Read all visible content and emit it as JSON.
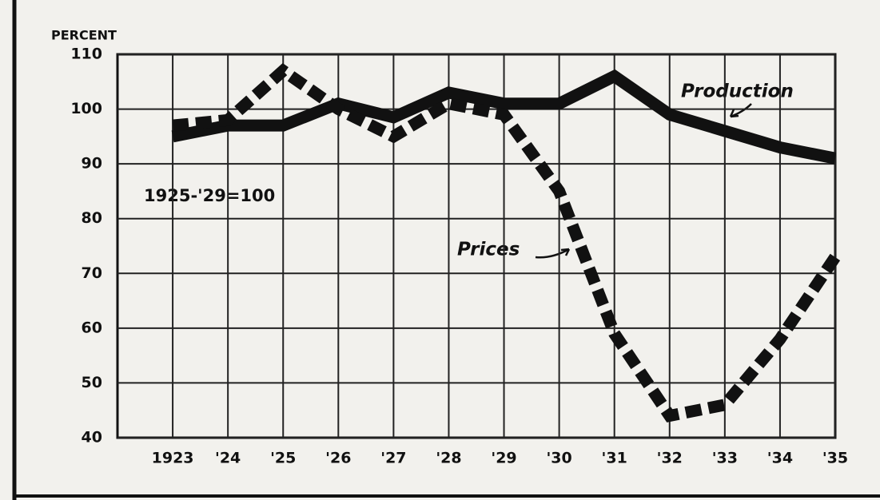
{
  "chart_data": {
    "type": "line",
    "axis_title": "PERCENT",
    "annotation": "1925-'29=100",
    "x": [
      1923,
      1924,
      1925,
      1926,
      1927,
      1928,
      1929,
      1930,
      1931,
      1932,
      1933,
      1934,
      1935
    ],
    "series": [
      {
        "name": "Production",
        "color": "#111111",
        "dashed": false,
        "values": [
          95,
          97,
          97,
          101,
          98.5,
          103,
          101,
          101,
          106,
          99,
          96,
          93,
          91
        ]
      },
      {
        "name": "Prices",
        "color": "#111111",
        "dashed": true,
        "values": [
          97,
          98,
          107,
          100,
          95,
          101,
          99,
          85,
          59,
          44,
          46,
          58,
          73
        ]
      }
    ],
    "xlim": [
      1922,
      1935
    ],
    "xticks": [
      1923,
      {
        "value": 1924,
        "label": "'24"
      },
      {
        "value": 1925,
        "label": "'25"
      },
      {
        "value": 1926,
        "label": "'26"
      },
      {
        "value": 1927,
        "label": "'27"
      },
      {
        "value": 1928,
        "label": "'28"
      },
      {
        "value": 1929,
        "label": "'29"
      },
      {
        "value": 1930,
        "label": "'30"
      },
      {
        "value": 1931,
        "label": "'31"
      },
      {
        "value": 1932,
        "label": "'32"
      },
      {
        "value": 1933,
        "label": "'33"
      },
      {
        "value": 1934,
        "label": "'34"
      },
      {
        "value": 1935,
        "label": "'35"
      }
    ],
    "ylim": [
      40,
      110
    ],
    "yticks": [
      40,
      50,
      60,
      70,
      80,
      90,
      100,
      110
    ],
    "grid": true
  }
}
